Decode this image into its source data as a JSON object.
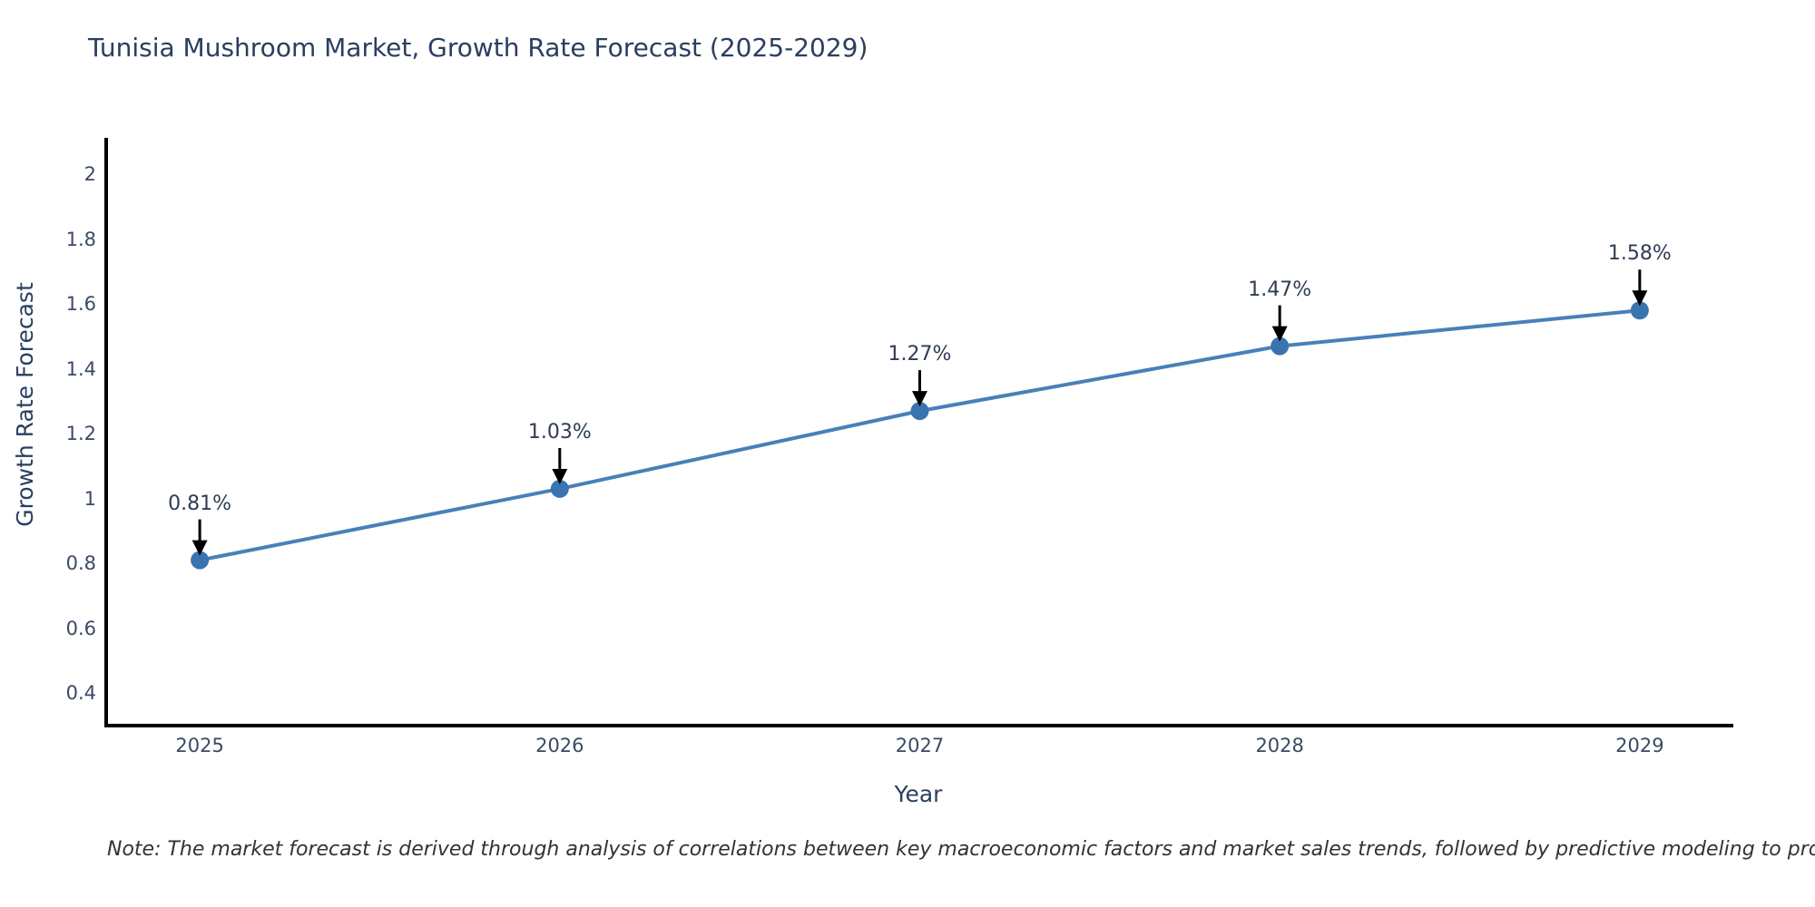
{
  "chart_data": {
    "type": "line",
    "title": "Tunisia Mushroom Market, Growth Rate Forecast (2025-2029)",
    "xlabel": "Year",
    "ylabel": "Growth Rate Forecast",
    "x": [
      2025,
      2026,
      2027,
      2028,
      2029
    ],
    "x_tick_labels": [
      "2025",
      "2026",
      "2027",
      "2028",
      "2029"
    ],
    "series": [
      {
        "name": "Growth Rate Forecast",
        "values": [
          0.81,
          1.03,
          1.27,
          1.47,
          1.58
        ]
      }
    ],
    "point_labels": [
      "0.81%",
      "1.03%",
      "1.27%",
      "1.47%",
      "1.58%"
    ],
    "y_ticks": [
      0.4,
      0.6,
      0.8,
      1,
      1.2,
      1.4,
      1.6,
      1.8,
      2
    ],
    "y_tick_labels": [
      "0.4",
      "0.6",
      "0.8",
      "1",
      "1.2",
      "1.4",
      "1.6",
      "1.8",
      "2"
    ],
    "ylim": [
      0.3,
      2.112
    ],
    "xlim": [
      2024.74,
      2029.26
    ],
    "grid": false,
    "legend_position": "none",
    "colors": {
      "line": "#4880b8",
      "marker": "#3a74b0",
      "axis_spine": "#000000",
      "annotation_arrow": "#000000",
      "title_text": "#2a3f5f",
      "tick_text": "#3a4a66",
      "annotation_text": "#2f3d52"
    }
  },
  "footnote": {
    "text": "Note: The market forecast is derived through analysis of correlations between key macroeconomic factors and market sales trends, followed by predictive modeling to project future sales"
  }
}
